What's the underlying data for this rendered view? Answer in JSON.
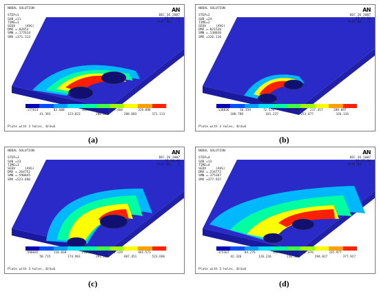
{
  "panels": [
    {
      "header": "NODAL SOLUTION\n\nSTEP=1\nSUB =11\nTIME=1\nSEQV     (AVG)\nDMX =.02653\nSMN =.177614\nSMX =371.113",
      "logo": "AN",
      "date": "DEC 26 2007\n12:25:13\nPLOT NO.   1",
      "ticks_top": [
        ".177614",
        "82.608",
        "165.038",
        "247.468",
        "329.898"
      ],
      "ticks_bottom": [
        "41.393",
        "123.823",
        "206.253",
        "288.683",
        "371.113"
      ],
      "footer": "Plate with 3 holes, B/d=6",
      "caption": "(a)"
    },
    {
      "header": "NODAL SOLUTION\n\nSTEP=2\nSUB =24\nTIME=2\nSEQV     (AVG)\nDMX =.021526\nSMN =.138836\nSMX =326.116",
      "logo": "AN",
      "date": "DEC 26 2007\n12:25:53\nPLOT NO.   1",
      "ticks_top": [
        ".138836",
        "36.359",
        "72.578",
        "145.018",
        "217.457",
        "289.897"
      ],
      "ticks_bottom": [
        "108.798",
        "181.237",
        "253.677",
        "326.116"
      ],
      "footer": "Plate with 3 holes, B/d=6",
      "caption": "(b)"
    },
    {
      "header": "NODAL SOLUTION\n\nSTEP=3\nSUB =13\nTIME=3\nSEQV     (AVG)\nDMX =.264752\nSMN =.590845\nSMX =523.696",
      "logo": "AN",
      "date": "DEC 26 2007\n12:26:49\nPLOT NO.   1",
      "ticks_top": [
        ".590845",
        "116.838",
        "233.083",
        "349.329",
        "465.573"
      ],
      "ticks_bottom": [
        "58.715",
        "174.961",
        "291.206",
        "407.451",
        "523.696"
      ],
      "footer": "Plate with 3 holes, B/d=6",
      "caption": "(c)"
    },
    {
      "header": "NODAL SOLUTION\n\nSTEP=4\nSUB =13\nTIME=4\nSEQV     (AVG)\nDMX =.234772\nSMN =.375367\nSMX =377.927",
      "logo": "AN",
      "date": "DEC 26 2007\n12:27:34\nPLOT NO.   1",
      "ticks_top": [
        ".375367",
        "84.276",
        "168.176",
        "252.076",
        "335.977"
      ],
      "ticks_bottom": [
        "42.326",
        "126.226",
        "210.126",
        "294.027",
        "377.927"
      ],
      "footer": "Plate with 3 holes, B/d=6",
      "caption": "(d)"
    }
  ],
  "colors": {
    "legend": [
      "#0000b4",
      "#0050ff",
      "#00a0ff",
      "#00e0ff",
      "#00ffa0",
      "#40ff40",
      "#a0ff00",
      "#ffff00",
      "#ffa000",
      "#ff2000"
    ],
    "plate_top": "#2a2ac8",
    "plate_side": "#1a1aa0",
    "plate_right": "#2020a8"
  }
}
